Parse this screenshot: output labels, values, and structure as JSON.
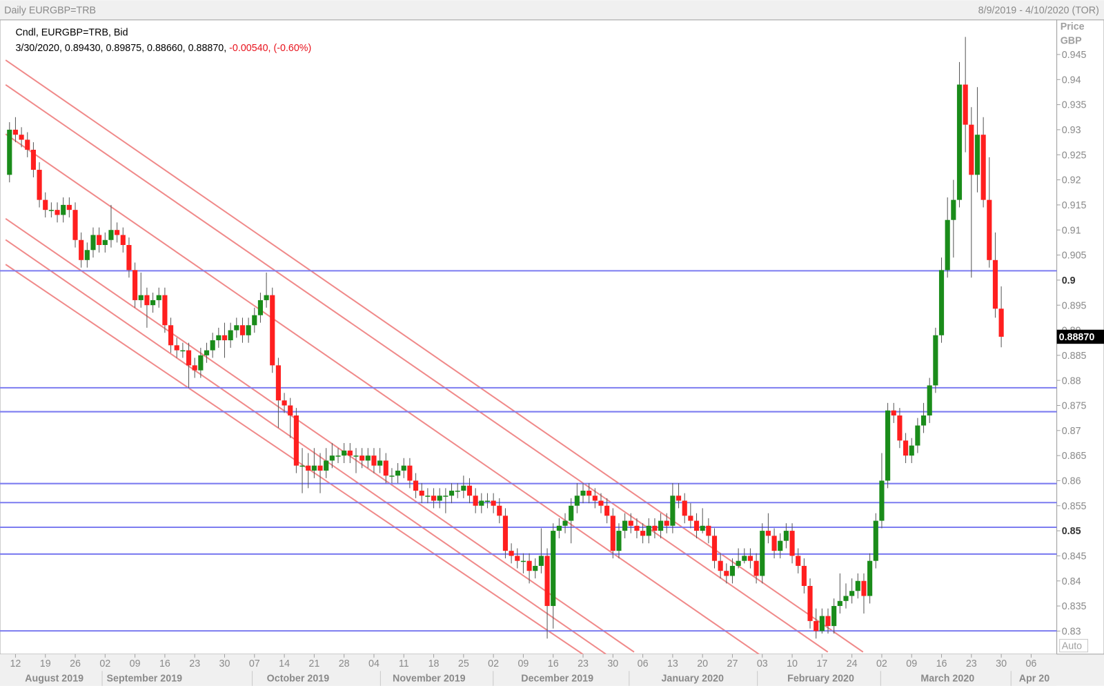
{
  "chart_data": {
    "type": "candlestick",
    "title": "Daily EURGBP=TRB",
    "date_range": "8/9/2019 - 4/10/2020 (TOR)",
    "legend_name": "Cndl, EURGBP=TRB, Bid",
    "legend_values": "3/30/2020, 0.89430, 0.89875, 0.88660, 0.88870,",
    "legend_change": "-0.00540, (-0.60%)",
    "axis_title": "Price",
    "axis_unit": "GBP",
    "scale_mode": "Auto",
    "last_price": {
      "value": 0.8887,
      "label": "0.88870"
    },
    "up_color": "#1a8c1a",
    "down_color": "#ff1f1f",
    "ylim": [
      0.8254,
      0.9519
    ],
    "yticks": [
      0.83,
      0.835,
      0.84,
      0.845,
      0.85,
      0.855,
      0.86,
      0.865,
      0.87,
      0.875,
      0.88,
      0.885,
      0.89,
      0.895,
      0.9,
      0.905,
      0.91,
      0.915,
      0.92,
      0.925,
      0.93,
      0.935,
      0.94,
      0.945
    ],
    "bold_yticks": [
      0.85,
      0.9
    ],
    "xtick_labels": [
      "12",
      "19",
      "26",
      "02",
      "09",
      "16",
      "23",
      "30",
      "07",
      "14",
      "21",
      "28",
      "04",
      "11",
      "18",
      "25",
      "02",
      "09",
      "16",
      "23",
      "30",
      "06",
      "13",
      "20",
      "27",
      "03",
      "10",
      "17",
      "24",
      "02",
      "09",
      "16",
      "23",
      "30",
      "06"
    ],
    "month_labels": [
      "August 2019",
      "September 2019",
      "October 2019",
      "November 2019",
      "December 2019",
      "January 2020",
      "February 2020",
      "March 2020",
      "Apr 20"
    ],
    "candles": [
      [
        0.921,
        0.9315,
        0.9195,
        0.93
      ],
      [
        0.93,
        0.9325,
        0.9275,
        0.929
      ],
      [
        0.929,
        0.9305,
        0.9265,
        0.928
      ],
      [
        0.928,
        0.9295,
        0.9245,
        0.926
      ],
      [
        0.926,
        0.9275,
        0.9205,
        0.922
      ],
      [
        0.922,
        0.9235,
        0.9145,
        0.916
      ],
      [
        0.916,
        0.9175,
        0.9125,
        0.914
      ],
      [
        0.914,
        0.9155,
        0.9125,
        0.914
      ],
      [
        0.914,
        0.9155,
        0.9115,
        0.913
      ],
      [
        0.913,
        0.9165,
        0.9115,
        0.915
      ],
      [
        0.915,
        0.9165,
        0.9125,
        0.914
      ],
      [
        0.914,
        0.9155,
        0.9065,
        0.908
      ],
      [
        0.908,
        0.9095,
        0.9025,
        0.904
      ],
      [
        0.904,
        0.9075,
        0.9025,
        0.906
      ],
      [
        0.906,
        0.9105,
        0.9045,
        0.909
      ],
      [
        0.909,
        0.9105,
        0.9055,
        0.907
      ],
      [
        0.907,
        0.9095,
        0.9055,
        0.908
      ],
      [
        0.908,
        0.915,
        0.9065,
        0.91
      ],
      [
        0.91,
        0.9115,
        0.9075,
        0.909
      ],
      [
        0.909,
        0.9105,
        0.9055,
        0.907
      ],
      [
        0.907,
        0.9085,
        0.9005,
        0.902
      ],
      [
        0.902,
        0.9035,
        0.8945,
        0.896
      ],
      [
        0.896,
        0.9015,
        0.8945,
        0.897
      ],
      [
        0.897,
        0.8985,
        0.8905,
        0.895
      ],
      [
        0.895,
        0.8975,
        0.8935,
        0.896
      ],
      [
        0.896,
        0.8985,
        0.8945,
        0.897
      ],
      [
        0.897,
        0.8985,
        0.8895,
        0.891
      ],
      [
        0.891,
        0.8925,
        0.8855,
        0.887
      ],
      [
        0.887,
        0.8885,
        0.8845,
        0.886
      ],
      [
        0.886,
        0.8875,
        0.8845,
        0.886
      ],
      [
        0.886,
        0.8875,
        0.8785,
        0.883
      ],
      [
        0.883,
        0.8845,
        0.8805,
        0.882
      ],
      [
        0.882,
        0.8865,
        0.8805,
        0.885
      ],
      [
        0.885,
        0.8875,
        0.8835,
        0.886
      ],
      [
        0.886,
        0.8895,
        0.8845,
        0.888
      ],
      [
        0.888,
        0.8905,
        0.8865,
        0.889
      ],
      [
        0.889,
        0.8915,
        0.8845,
        0.888
      ],
      [
        0.888,
        0.8915,
        0.8865,
        0.89
      ],
      [
        0.89,
        0.8925,
        0.8885,
        0.891
      ],
      [
        0.891,
        0.8925,
        0.8875,
        0.889
      ],
      [
        0.889,
        0.8925,
        0.8875,
        0.891
      ],
      [
        0.891,
        0.8945,
        0.8895,
        0.893
      ],
      [
        0.893,
        0.8975,
        0.8915,
        0.896
      ],
      [
        0.896,
        0.9015,
        0.8945,
        0.897
      ],
      [
        0.897,
        0.8985,
        0.8815,
        0.883
      ],
      [
        0.883,
        0.8845,
        0.8705,
        0.876
      ],
      [
        0.876,
        0.8775,
        0.8735,
        0.875
      ],
      [
        0.875,
        0.8765,
        0.8685,
        0.873
      ],
      [
        0.873,
        0.8745,
        0.8615,
        0.863
      ],
      [
        0.863,
        0.8665,
        0.8575,
        0.863
      ],
      [
        0.863,
        0.8655,
        0.8585,
        0.862
      ],
      [
        0.862,
        0.8665,
        0.8605,
        0.863
      ],
      [
        0.863,
        0.8655,
        0.8575,
        0.862
      ],
      [
        0.862,
        0.8665,
        0.8605,
        0.864
      ],
      [
        0.864,
        0.8675,
        0.8625,
        0.865
      ],
      [
        0.865,
        0.8665,
        0.8635,
        0.865
      ],
      [
        0.865,
        0.8675,
        0.8635,
        0.866
      ],
      [
        0.866,
        0.8675,
        0.8635,
        0.865
      ],
      [
        0.865,
        0.8665,
        0.8615,
        0.865
      ],
      [
        0.865,
        0.8665,
        0.8625,
        0.864
      ],
      [
        0.864,
        0.8665,
        0.8625,
        0.865
      ],
      [
        0.865,
        0.8665,
        0.8615,
        0.863
      ],
      [
        0.863,
        0.8665,
        0.8615,
        0.864
      ],
      [
        0.864,
        0.8655,
        0.8595,
        0.861
      ],
      [
        0.861,
        0.8625,
        0.8595,
        0.861
      ],
      [
        0.861,
        0.8635,
        0.8595,
        0.862
      ],
      [
        0.862,
        0.8645,
        0.8605,
        0.863
      ],
      [
        0.863,
        0.8645,
        0.8585,
        0.86
      ],
      [
        0.86,
        0.8615,
        0.8565,
        0.858
      ],
      [
        0.858,
        0.8595,
        0.8555,
        0.857
      ],
      [
        0.857,
        0.8585,
        0.8555,
        0.857
      ],
      [
        0.857,
        0.8585,
        0.8545,
        0.856
      ],
      [
        0.856,
        0.8585,
        0.8545,
        0.857
      ],
      [
        0.857,
        0.8585,
        0.8535,
        0.857
      ],
      [
        0.857,
        0.8595,
        0.8555,
        0.858
      ],
      [
        0.858,
        0.8595,
        0.8565,
        0.858
      ],
      [
        0.858,
        0.861,
        0.8565,
        0.859
      ],
      [
        0.859,
        0.8605,
        0.8555,
        0.857
      ],
      [
        0.857,
        0.8585,
        0.8535,
        0.855
      ],
      [
        0.855,
        0.8575,
        0.8535,
        0.856
      ],
      [
        0.856,
        0.8575,
        0.8545,
        0.856
      ],
      [
        0.856,
        0.8575,
        0.8535,
        0.855
      ],
      [
        0.855,
        0.8565,
        0.8515,
        0.853
      ],
      [
        0.853,
        0.8545,
        0.8445,
        0.846
      ],
      [
        0.846,
        0.8475,
        0.8435,
        0.845
      ],
      [
        0.845,
        0.8465,
        0.8425,
        0.844
      ],
      [
        0.844,
        0.8455,
        0.8415,
        0.844
      ],
      [
        0.844,
        0.8455,
        0.8395,
        0.842
      ],
      [
        0.842,
        0.8445,
        0.8405,
        0.843
      ],
      [
        0.843,
        0.8505,
        0.8415,
        0.845
      ],
      [
        0.845,
        0.8465,
        0.8285,
        0.835
      ],
      [
        0.835,
        0.8515,
        0.8305,
        0.85
      ],
      [
        0.85,
        0.8525,
        0.8485,
        0.851
      ],
      [
        0.851,
        0.8535,
        0.8495,
        0.852
      ],
      [
        0.852,
        0.8565,
        0.8475,
        0.855
      ],
      [
        0.855,
        0.8595,
        0.8535,
        0.857
      ],
      [
        0.857,
        0.8595,
        0.8555,
        0.858
      ],
      [
        0.858,
        0.8595,
        0.8555,
        0.857
      ],
      [
        0.857,
        0.8585,
        0.8545,
        0.856
      ],
      [
        0.856,
        0.8575,
        0.8535,
        0.855
      ],
      [
        0.855,
        0.8565,
        0.8515,
        0.853
      ],
      [
        0.853,
        0.8545,
        0.8445,
        0.846
      ],
      [
        0.846,
        0.8515,
        0.8445,
        0.85
      ],
      [
        0.85,
        0.8535,
        0.8485,
        0.852
      ],
      [
        0.852,
        0.8535,
        0.8495,
        0.851
      ],
      [
        0.851,
        0.8525,
        0.8485,
        0.85
      ],
      [
        0.85,
        0.8515,
        0.8475,
        0.849
      ],
      [
        0.849,
        0.8525,
        0.8475,
        0.851
      ],
      [
        0.851,
        0.8525,
        0.8485,
        0.85
      ],
      [
        0.85,
        0.8535,
        0.8485,
        0.852
      ],
      [
        0.852,
        0.8535,
        0.8495,
        0.851
      ],
      [
        0.851,
        0.8595,
        0.8495,
        0.857
      ],
      [
        0.857,
        0.8595,
        0.8545,
        0.856
      ],
      [
        0.856,
        0.8575,
        0.8515,
        0.853
      ],
      [
        0.853,
        0.8555,
        0.8505,
        0.852
      ],
      [
        0.852,
        0.8535,
        0.8485,
        0.85
      ],
      [
        0.85,
        0.8545,
        0.8495,
        0.851
      ],
      [
        0.851,
        0.8525,
        0.8475,
        0.849
      ],
      [
        0.849,
        0.8505,
        0.8425,
        0.844
      ],
      [
        0.844,
        0.8455,
        0.8405,
        0.842
      ],
      [
        0.842,
        0.8435,
        0.8395,
        0.841
      ],
      [
        0.841,
        0.8445,
        0.8395,
        0.843
      ],
      [
        0.843,
        0.8465,
        0.8425,
        0.844
      ],
      [
        0.844,
        0.8465,
        0.8435,
        0.845
      ],
      [
        0.845,
        0.8465,
        0.8425,
        0.844
      ],
      [
        0.844,
        0.8455,
        0.8395,
        0.841
      ],
      [
        0.841,
        0.8515,
        0.8395,
        0.85
      ],
      [
        0.85,
        0.8535,
        0.8475,
        0.849
      ],
      [
        0.849,
        0.8505,
        0.8445,
        0.846
      ],
      [
        0.846,
        0.8495,
        0.8445,
        0.848
      ],
      [
        0.848,
        0.8515,
        0.8465,
        0.85
      ],
      [
        0.85,
        0.8515,
        0.8435,
        0.845
      ],
      [
        0.845,
        0.8465,
        0.8415,
        0.843
      ],
      [
        0.843,
        0.8445,
        0.8375,
        0.839
      ],
      [
        0.839,
        0.8405,
        0.8305,
        0.832
      ],
      [
        0.832,
        0.8345,
        0.8285,
        0.83
      ],
      [
        0.83,
        0.8345,
        0.8295,
        0.833
      ],
      [
        0.833,
        0.8345,
        0.8295,
        0.831
      ],
      [
        0.831,
        0.8365,
        0.8295,
        0.835
      ],
      [
        0.835,
        0.8415,
        0.8335,
        0.836
      ],
      [
        0.836,
        0.8395,
        0.8345,
        0.837
      ],
      [
        0.837,
        0.8405,
        0.8355,
        0.838
      ],
      [
        0.838,
        0.8415,
        0.8365,
        0.84
      ],
      [
        0.84,
        0.8415,
        0.8335,
        0.837
      ],
      [
        0.837,
        0.8455,
        0.8355,
        0.844
      ],
      [
        0.844,
        0.8535,
        0.8425,
        0.852
      ],
      [
        0.852,
        0.8655,
        0.8505,
        0.86
      ],
      [
        0.86,
        0.8755,
        0.8585,
        0.874
      ],
      [
        0.874,
        0.8755,
        0.8715,
        0.873
      ],
      [
        0.873,
        0.8745,
        0.8665,
        0.868
      ],
      [
        0.868,
        0.8695,
        0.8635,
        0.865
      ],
      [
        0.865,
        0.8685,
        0.8635,
        0.867
      ],
      [
        0.867,
        0.8725,
        0.8655,
        0.871
      ],
      [
        0.871,
        0.8755,
        0.8695,
        0.873
      ],
      [
        0.873,
        0.8805,
        0.8715,
        0.879
      ],
      [
        0.879,
        0.8905,
        0.8775,
        0.889
      ],
      [
        0.889,
        0.9045,
        0.8875,
        0.902
      ],
      [
        0.902,
        0.9165,
        0.9005,
        0.912
      ],
      [
        0.912,
        0.92,
        0.9045,
        0.916
      ],
      [
        0.916,
        0.9435,
        0.9145,
        0.939
      ],
      [
        0.939,
        0.9485,
        0.9255,
        0.931
      ],
      [
        0.931,
        0.9345,
        0.9005,
        0.921
      ],
      [
        0.921,
        0.9385,
        0.9175,
        0.929
      ],
      [
        0.929,
        0.9325,
        0.9145,
        0.916
      ],
      [
        0.916,
        0.9245,
        0.9025,
        0.904
      ],
      [
        0.904,
        0.9095,
        0.8925,
        0.8943
      ],
      [
        0.8943,
        0.89875,
        0.8866,
        0.8887
      ]
    ]
  }
}
